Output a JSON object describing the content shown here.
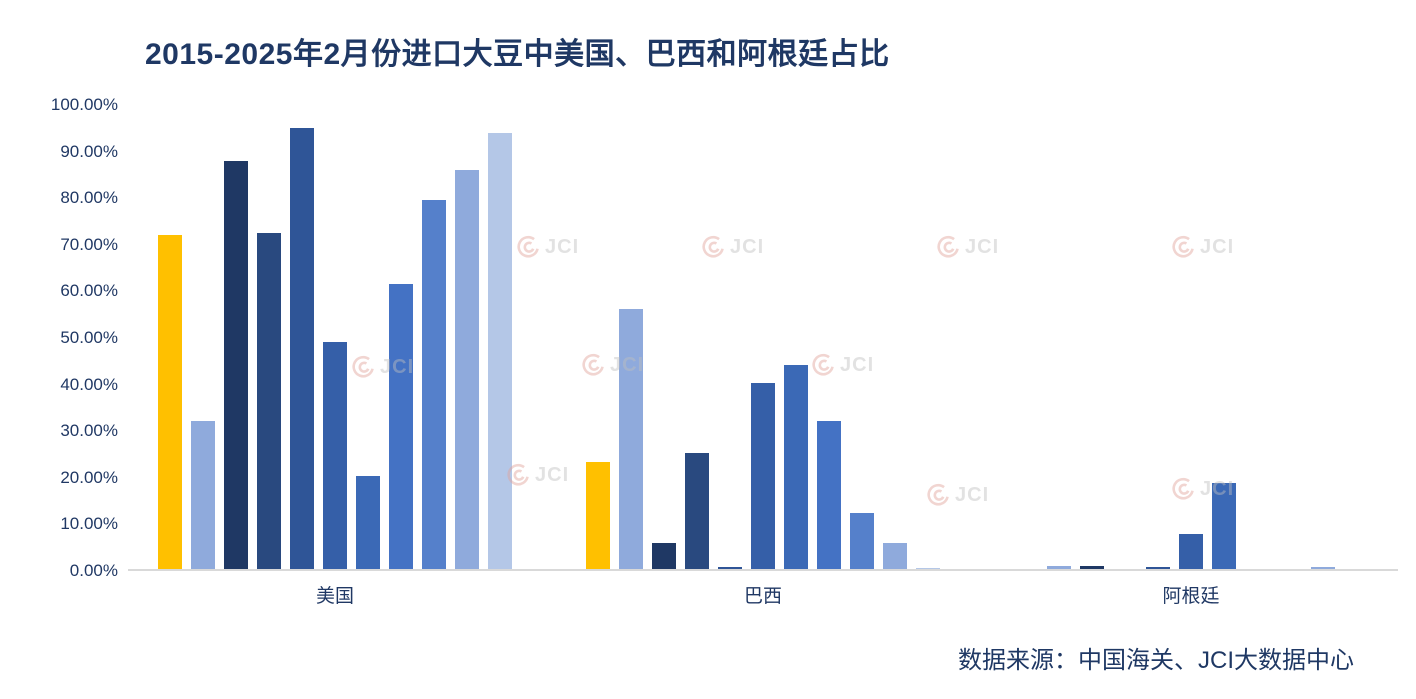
{
  "title": "2015-2025年2月份进口大豆中美国、巴西和阿根廷占比",
  "source": "数据来源：中国海关、JCI大数据中心",
  "watermark": {
    "text": "JCI"
  },
  "colors": {
    "title_text": "#1F3864",
    "axis_text": "#203864",
    "axis_line": "#D9D9D9",
    "background": "#FFFFFF",
    "highlight_gold": "#FFC000"
  },
  "chart_data": {
    "type": "bar",
    "title": "2015-2025年2月份进口大豆中美国、巴西和阿根廷占比",
    "categories": [
      "美国",
      "巴西",
      "阿根廷"
    ],
    "xlabel": "",
    "ylabel": "",
    "ylim": [
      0,
      100
    ],
    "grid": false,
    "legend_position": "none",
    "y_axis": {
      "min": 0,
      "max": 100,
      "tick_step": 10,
      "format": "percent",
      "tick_labels": [
        "0.00%",
        "10.00%",
        "20.00%",
        "30.00%",
        "40.00%",
        "50.00%",
        "60.00%",
        "70.00%",
        "80.00%",
        "90.00%",
        "100.00%"
      ]
    },
    "series": [
      {
        "name": "bar-01",
        "color": "#FFC000",
        "values": [
          72.0,
          23.0,
          0.0
        ]
      },
      {
        "name": "bar-02",
        "color": "#8FAADC",
        "values": [
          32.0,
          56.0,
          0.6
        ]
      },
      {
        "name": "bar-03",
        "color": "#1F3864",
        "values": [
          88.0,
          5.5,
          0.6
        ]
      },
      {
        "name": "bar-04",
        "color": "#29497F",
        "values": [
          72.5,
          25.0,
          0.0
        ]
      },
      {
        "name": "bar-05",
        "color": "#2F5597",
        "values": [
          95.0,
          0.5,
          0.5
        ]
      },
      {
        "name": "bar-06",
        "color": "#355FA8",
        "values": [
          49.0,
          40.0,
          7.5
        ]
      },
      {
        "name": "bar-07",
        "color": "#3B69B6",
        "values": [
          20.0,
          44.0,
          18.5
        ]
      },
      {
        "name": "bar-08",
        "color": "#4472C4",
        "values": [
          61.5,
          32.0,
          0.0
        ]
      },
      {
        "name": "bar-09",
        "color": "#5580CB",
        "values": [
          79.5,
          12.0,
          0.0
        ]
      },
      {
        "name": "bar-10",
        "color": "#8FAADC",
        "values": [
          86.0,
          5.5,
          0.5
        ]
      },
      {
        "name": "bar-11",
        "color": "#B4C7E7",
        "values": [
          94.0,
          0.3,
          0.0
        ]
      }
    ]
  }
}
